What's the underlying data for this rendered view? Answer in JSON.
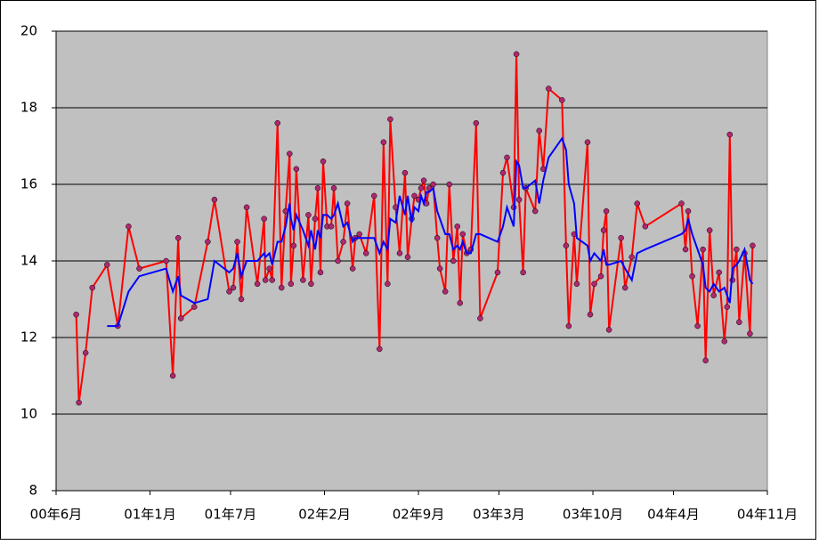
{
  "chart_data": {
    "type": "line",
    "x": [
      1.5,
      1.7,
      2.2,
      2.7,
      3.8,
      4.6,
      5.4,
      6.2,
      8.2,
      8.7,
      9.1,
      9.3,
      10.3,
      11.3,
      11.8,
      12.9,
      13.2,
      13.5,
      13.8,
      14.2,
      15.0,
      15.5,
      15.6,
      15.9,
      16.1,
      16.5,
      16.8,
      17.1,
      17.4,
      17.5,
      17.7,
      17.9,
      18.4,
      18.8,
      19.0,
      19.3,
      19.5,
      19.7,
      19.9,
      20.2,
      20.5,
      20.7,
      21.0,
      21.4,
      21.7,
      22.1,
      22.3,
      22.6,
      23.1,
      23.7,
      24.1,
      24.4,
      24.7,
      24.9,
      25.3,
      25.6,
      26.0,
      26.2,
      26.5,
      26.7,
      27.0,
      27.2,
      27.4,
      27.6,
      27.8,
      28.1,
      28.4,
      28.6,
      29.0,
      29.3,
      29.6,
      29.9,
      30.1,
      30.3,
      30.6,
      30.9,
      31.3,
      31.6,
      32.9,
      33.3,
      33.6,
      34.1,
      34.3,
      34.5,
      34.8,
      35.0,
      35.7,
      36.0,
      36.3,
      36.7,
      37.7,
      38.0,
      38.2,
      38.6,
      38.8,
      39.6,
      39.8,
      40.1,
      40.6,
      40.8,
      41.0,
      41.2,
      42.1,
      42.4,
      42.9,
      43.3,
      43.9,
      46.6,
      46.9,
      47.1,
      47.4,
      47.8,
      48.2,
      48.4,
      48.7,
      49.0,
      49.4,
      49.8,
      50.0,
      50.2,
      50.4,
      50.7,
      50.9,
      51.3,
      51.7,
      51.9
    ],
    "series": [
      {
        "color": "#ff0000",
        "marker_color": "#b0286e",
        "markers": true,
        "values": [
          12.6,
          10.3,
          11.6,
          13.3,
          13.9,
          12.3,
          14.9,
          13.8,
          14.0,
          11.0,
          14.6,
          12.5,
          12.8,
          14.5,
          15.6,
          13.2,
          13.3,
          14.5,
          13.0,
          15.4,
          13.4,
          15.1,
          13.5,
          13.8,
          13.5,
          17.6,
          13.3,
          15.3,
          16.8,
          13.4,
          14.4,
          16.4,
          13.5,
          15.2,
          13.4,
          15.1,
          15.9,
          13.7,
          16.6,
          14.9,
          14.9,
          15.9,
          14.0,
          14.5,
          15.5,
          13.8,
          14.6,
          14.7,
          14.2,
          15.7,
          11.7,
          17.1,
          13.4,
          17.7,
          15.4,
          14.2,
          16.3,
          14.1,
          15.1,
          15.7,
          15.6,
          15.9,
          16.1,
          15.5,
          15.9,
          16.0,
          14.6,
          13.8,
          13.2,
          16.0,
          14.0,
          14.9,
          12.9,
          14.7,
          14.2,
          14.3,
          17.6,
          12.5,
          13.7,
          16.3,
          16.7,
          15.4,
          19.4,
          15.6,
          13.7,
          15.9,
          15.3,
          17.4,
          16.4,
          18.5,
          18.2,
          14.4,
          12.3,
          14.7,
          13.4,
          17.1,
          12.6,
          13.4,
          13.6,
          14.8,
          15.3,
          12.2,
          14.6,
          13.3,
          14.1,
          15.5,
          14.9,
          15.5,
          14.3,
          15.3,
          13.6,
          12.3,
          14.3,
          11.4,
          14.8,
          13.1,
          13.7,
          11.9,
          12.8,
          17.3,
          13.5,
          14.3,
          12.4,
          14.2,
          12.1,
          14.4
        ]
      },
      {
        "color": "#0000ff",
        "markers": false,
        "values": [
          null,
          null,
          null,
          null,
          12.3,
          12.3,
          13.2,
          13.6,
          13.8,
          13.2,
          13.6,
          13.1,
          12.9,
          13.0,
          14.0,
          13.7,
          13.8,
          14.2,
          13.6,
          14.0,
          14.0,
          14.2,
          14.1,
          14.2,
          13.9,
          14.5,
          14.5,
          14.9,
          15.5,
          15.1,
          14.8,
          15.2,
          14.8,
          14.4,
          14.8,
          14.3,
          14.8,
          14.6,
          15.2,
          15.2,
          15.1,
          15.2,
          15.5,
          14.9,
          15.0,
          14.5,
          14.6,
          14.6,
          14.6,
          14.6,
          14.2,
          14.5,
          14.3,
          15.1,
          15.0,
          15.7,
          15.2,
          15.7,
          15.0,
          15.4,
          15.3,
          15.7,
          15.5,
          15.8,
          15.8,
          15.9,
          15.3,
          15.1,
          14.7,
          14.7,
          14.3,
          14.4,
          14.3,
          14.5,
          14.2,
          14.2,
          14.7,
          14.7,
          14.5,
          14.9,
          15.4,
          14.9,
          16.6,
          16.5,
          15.9,
          15.9,
          16.1,
          15.5,
          16.1,
          16.7,
          17.2,
          16.9,
          16.0,
          15.5,
          14.6,
          14.4,
          14.0,
          14.2,
          14.0,
          14.3,
          13.9,
          13.9,
          14.0,
          13.8,
          13.5,
          14.2,
          14.3,
          14.7,
          14.8,
          15.1,
          14.7,
          14.3,
          13.9,
          13.3,
          13.2,
          13.4,
          13.2,
          13.3,
          13.1,
          12.9,
          13.8,
          13.9,
          14.0,
          14.3,
          13.5,
          13.4
        ]
      }
    ],
    "xlim": [
      0,
      53
    ],
    "xticks": [
      {
        "value": 0,
        "label": "00年6月"
      },
      {
        "value": 7,
        "label": "01年1月"
      },
      {
        "value": 13,
        "label": "01年7月"
      },
      {
        "value": 20,
        "label": "02年2月"
      },
      {
        "value": 27,
        "label": "02年9月"
      },
      {
        "value": 33,
        "label": "03年3月"
      },
      {
        "value": 40,
        "label": "03年10月"
      },
      {
        "value": 46,
        "label": "04年4月"
      },
      {
        "value": 53,
        "label": "04年11月"
      }
    ],
    "ylim": [
      8,
      20
    ],
    "yticks": [
      8,
      10,
      12,
      14,
      16,
      18,
      20
    ],
    "grid": true,
    "plot_background": "#c0c0c0"
  }
}
